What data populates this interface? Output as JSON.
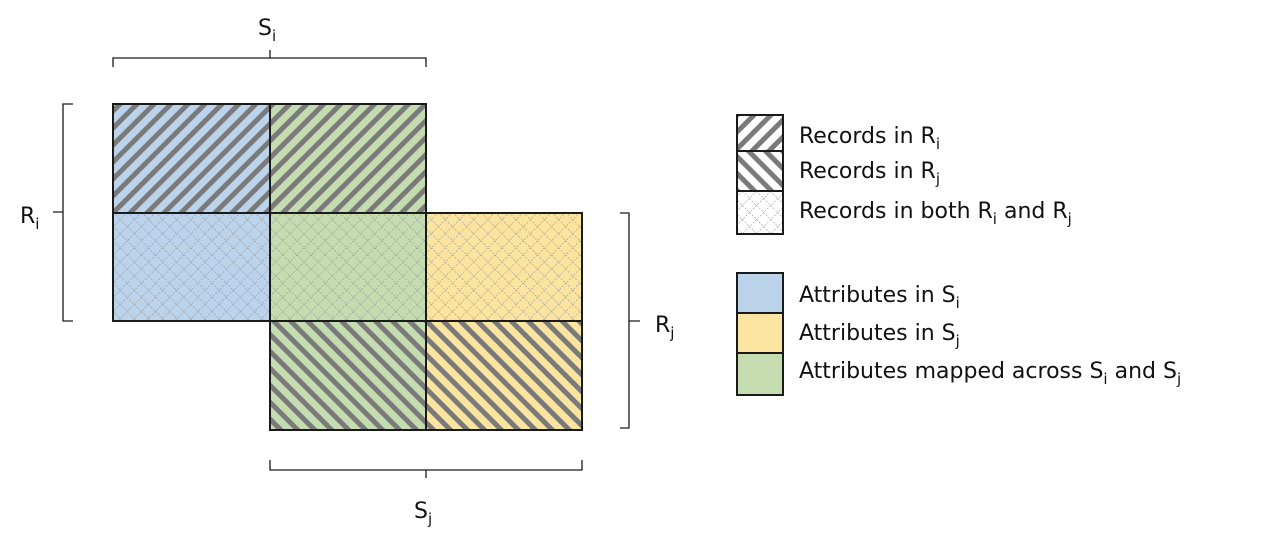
{
  "labels": {
    "top": {
      "main": "S",
      "sub": "i"
    },
    "left": {
      "main": "R",
      "sub": "i"
    },
    "right": {
      "main": "R",
      "sub": "j"
    },
    "bottom": {
      "main": "S",
      "sub": "j"
    }
  },
  "legend": {
    "records_ri": {
      "text": "Records in R",
      "sub": "i"
    },
    "records_rj": {
      "text": "Records in R",
      "sub": "j"
    },
    "records_both": {
      "text_a": "Records in both R",
      "sub_a": "i",
      "text_b": " and R",
      "sub_b": "j"
    },
    "attr_si": {
      "text": "Attributes in S",
      "sub": "i"
    },
    "attr_sj": {
      "text": "Attributes in S",
      "sub": "j"
    },
    "attr_mapped": {
      "text_a": "Attributes mapped across S",
      "sub_a": "i",
      "text_b": " and S",
      "sub_b": "j"
    }
  },
  "colors": {
    "blue": "#bcd3ec",
    "yellow": "#fbe3a0",
    "green": "#c4dcb0",
    "stroke": "#1a1a1a",
    "hatch": "#7a7a7a"
  }
}
